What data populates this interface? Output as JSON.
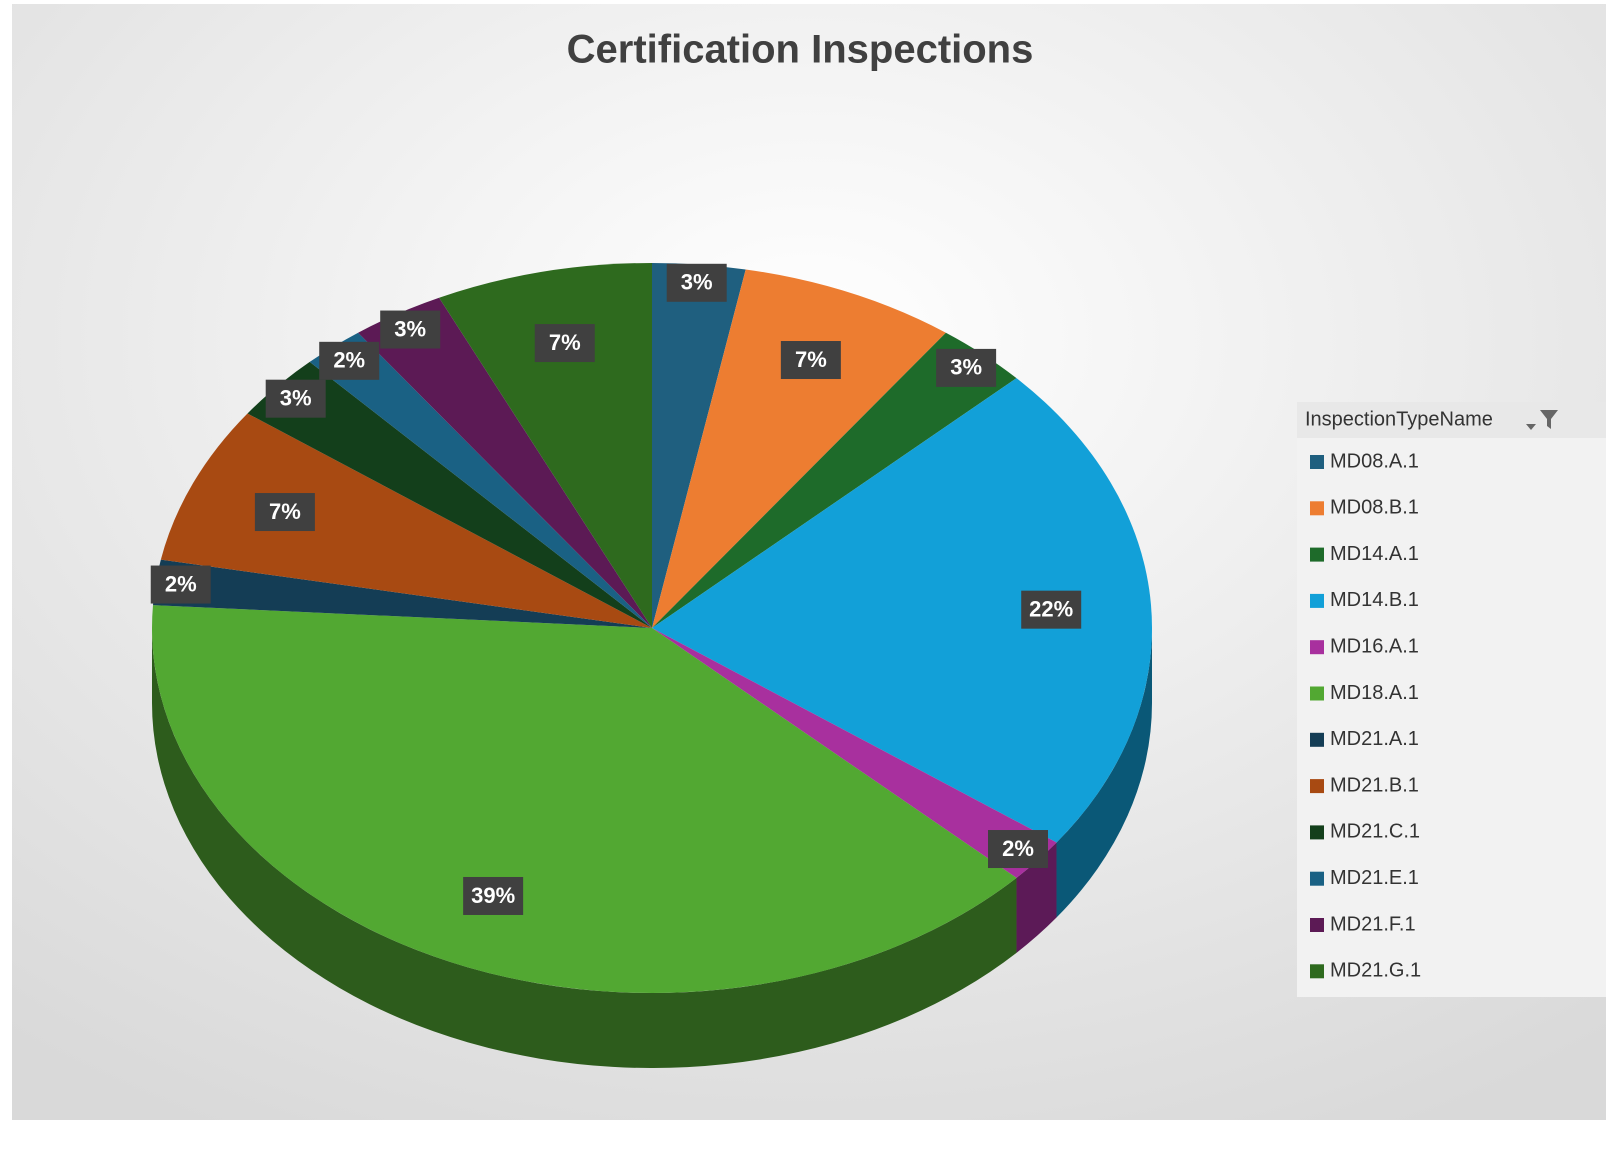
{
  "chart_data": {
    "type": "pie",
    "title": "Certification Inspections",
    "legend_title": "InspectionTypeName",
    "legend": "right",
    "categories": [
      "MD08.A.1",
      "MD08.B.1",
      "MD14.A.1",
      "MD14.B.1",
      "MD16.A.1",
      "MD18.A.1",
      "MD21.A.1",
      "MD21.B.1",
      "MD21.C.1",
      "MD21.E.1",
      "MD21.F.1",
      "MD21.G.1"
    ],
    "values": [
      3,
      7,
      3,
      22,
      2,
      39,
      2,
      7,
      3,
      2,
      3,
      7
    ],
    "value_labels": [
      "3%",
      "7%",
      "3%",
      "22%",
      "2%",
      "39%",
      "2%",
      "7%",
      "3%",
      "2%",
      "3%",
      "7%"
    ],
    "colors": [
      "#1f5f7f",
      "#ed7d31",
      "#1e6b2a",
      "#12a0d8",
      "#a8309e",
      "#52a832",
      "#143d55",
      "#a84a12",
      "#133f1b",
      "#1a6184",
      "#5c1a55",
      "#2e6a1e"
    ]
  }
}
